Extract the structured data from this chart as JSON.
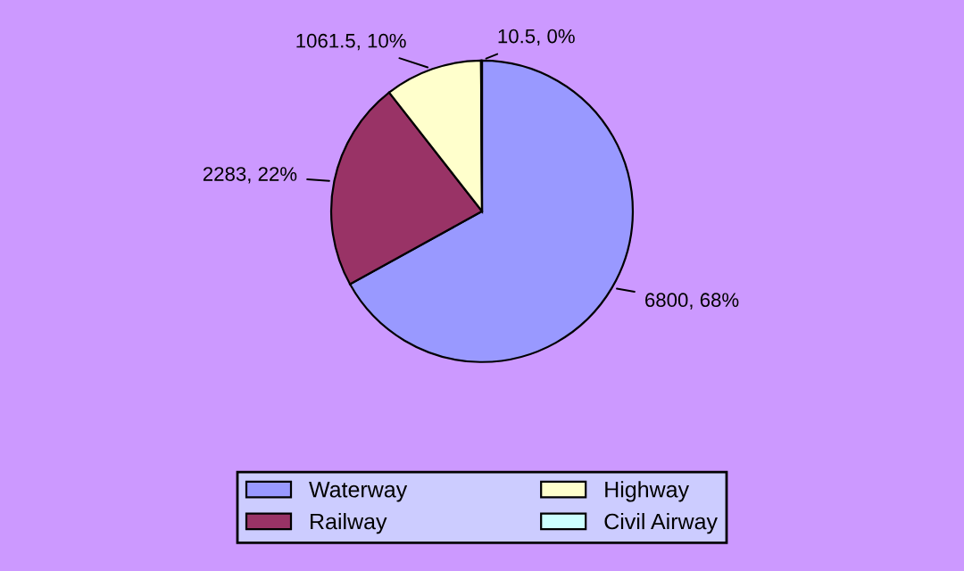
{
  "chart_data": {
    "type": "pie",
    "categories": [
      "Waterway",
      "Railway",
      "Highway",
      "Civil Airway"
    ],
    "values": [
      6800,
      2283,
      1061.5,
      10.5
    ],
    "value_labels": [
      "6800, 68%",
      "2283, 22%",
      "1061.5, 10%",
      "10.5, 0%"
    ],
    "colors": [
      "#9999ff",
      "#993366",
      "#ffffcc",
      "#ccffff"
    ],
    "legend": "bottom"
  }
}
